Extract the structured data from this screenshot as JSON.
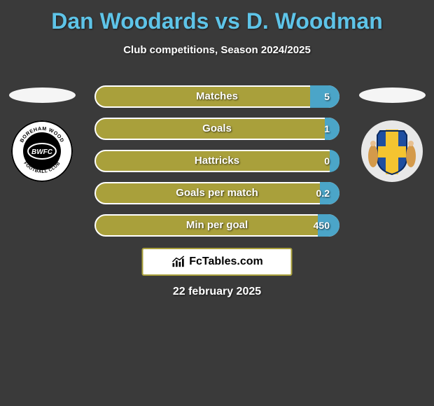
{
  "title": "Dan Woodards vs D. Woodman",
  "subtitle": "Club competitions, Season 2024/2025",
  "date": "22 february 2025",
  "brand": "FcTables.com",
  "colors": {
    "background": "#3a3a3a",
    "title": "#5ec4e8",
    "bar_left": "#a9a03b",
    "bar_right": "#4ba5c8",
    "bar_border": "#ffffff",
    "text": "#ffffff"
  },
  "bars": [
    {
      "label": "Matches",
      "right_value": "5",
      "right_fill_pct": 12
    },
    {
      "label": "Goals",
      "right_value": "1",
      "right_fill_pct": 6
    },
    {
      "label": "Hattricks",
      "right_value": "0",
      "right_fill_pct": 4
    },
    {
      "label": "Goals per match",
      "right_value": "0.2",
      "right_fill_pct": 8
    },
    {
      "label": "Min per goal",
      "right_value": "450",
      "right_fill_pct": 9
    }
  ],
  "left_badge": {
    "name": "boreham-wood-fc-logo",
    "ring_text_top": "BOREHAM WOOD",
    "ring_text_bottom": "FOOTBALL CLUB",
    "center_text": "BWFC"
  },
  "right_badge": {
    "name": "st-albans-style-crest"
  }
}
